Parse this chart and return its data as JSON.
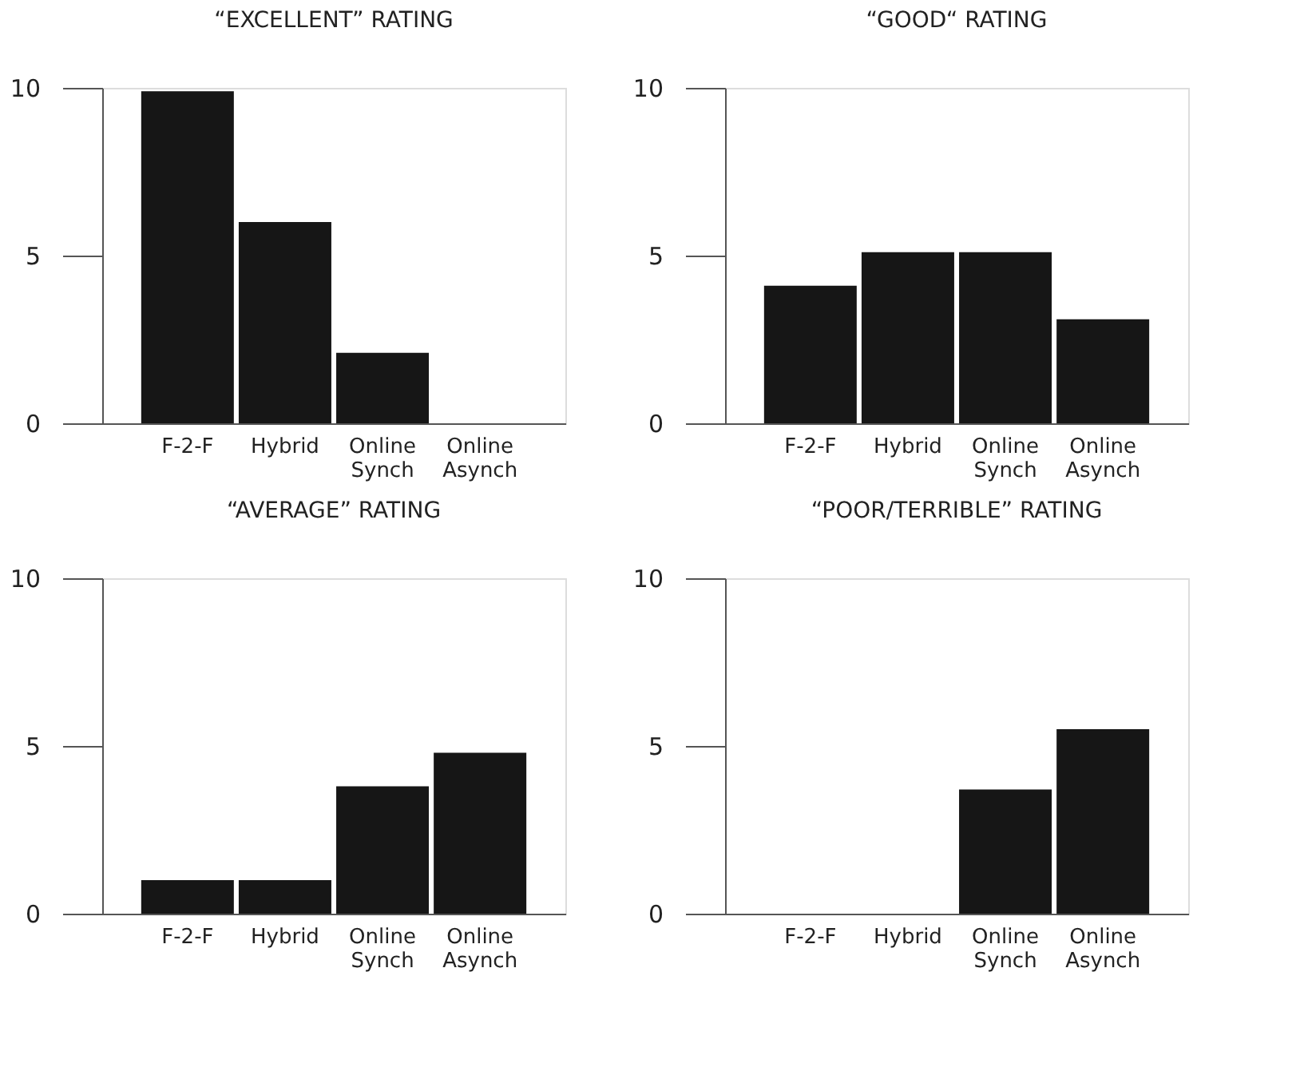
{
  "chart_data": [
    {
      "type": "bar",
      "title": "“EXCELLENT” RATING",
      "categories": [
        "F-2-F",
        "Hybrid",
        "Online Synch",
        "Online Asynch"
      ],
      "values": [
        9.9,
        6.0,
        2.1,
        0
      ],
      "color": "#161616",
      "ylim": [
        0,
        10
      ],
      "yticks": [
        0,
        5,
        10
      ],
      "grid": false
    },
    {
      "type": "bar",
      "title": "“GOOD“ RATING",
      "categories": [
        "F-2-F",
        "Hybrid",
        "Online Synch",
        "Online Asynch"
      ],
      "values": [
        4.1,
        5.1,
        5.1,
        3.1
      ],
      "color": "#161616",
      "ylim": [
        0,
        10
      ],
      "yticks": [
        0,
        5,
        10
      ],
      "grid": false
    },
    {
      "type": "bar",
      "title": "“AVERAGE” RATING",
      "categories": [
        "F-2-F",
        "Hybrid",
        "Online Synch",
        "Online Asynch"
      ],
      "values": [
        1.0,
        1.0,
        3.8,
        4.8
      ],
      "color": "#161616",
      "ylim": [
        0,
        10
      ],
      "yticks": [
        0,
        5,
        10
      ],
      "grid": false
    },
    {
      "type": "bar",
      "title": "“POOR/TERRIBLE” RATING",
      "categories": [
        "F-2-F",
        "Hybrid",
        "Online Synch",
        "Online Asynch"
      ],
      "values": [
        0,
        0,
        3.7,
        5.5
      ],
      "color": "#161616",
      "ylim": [
        0,
        10
      ],
      "yticks": [
        0,
        5,
        10
      ],
      "grid": false
    }
  ]
}
